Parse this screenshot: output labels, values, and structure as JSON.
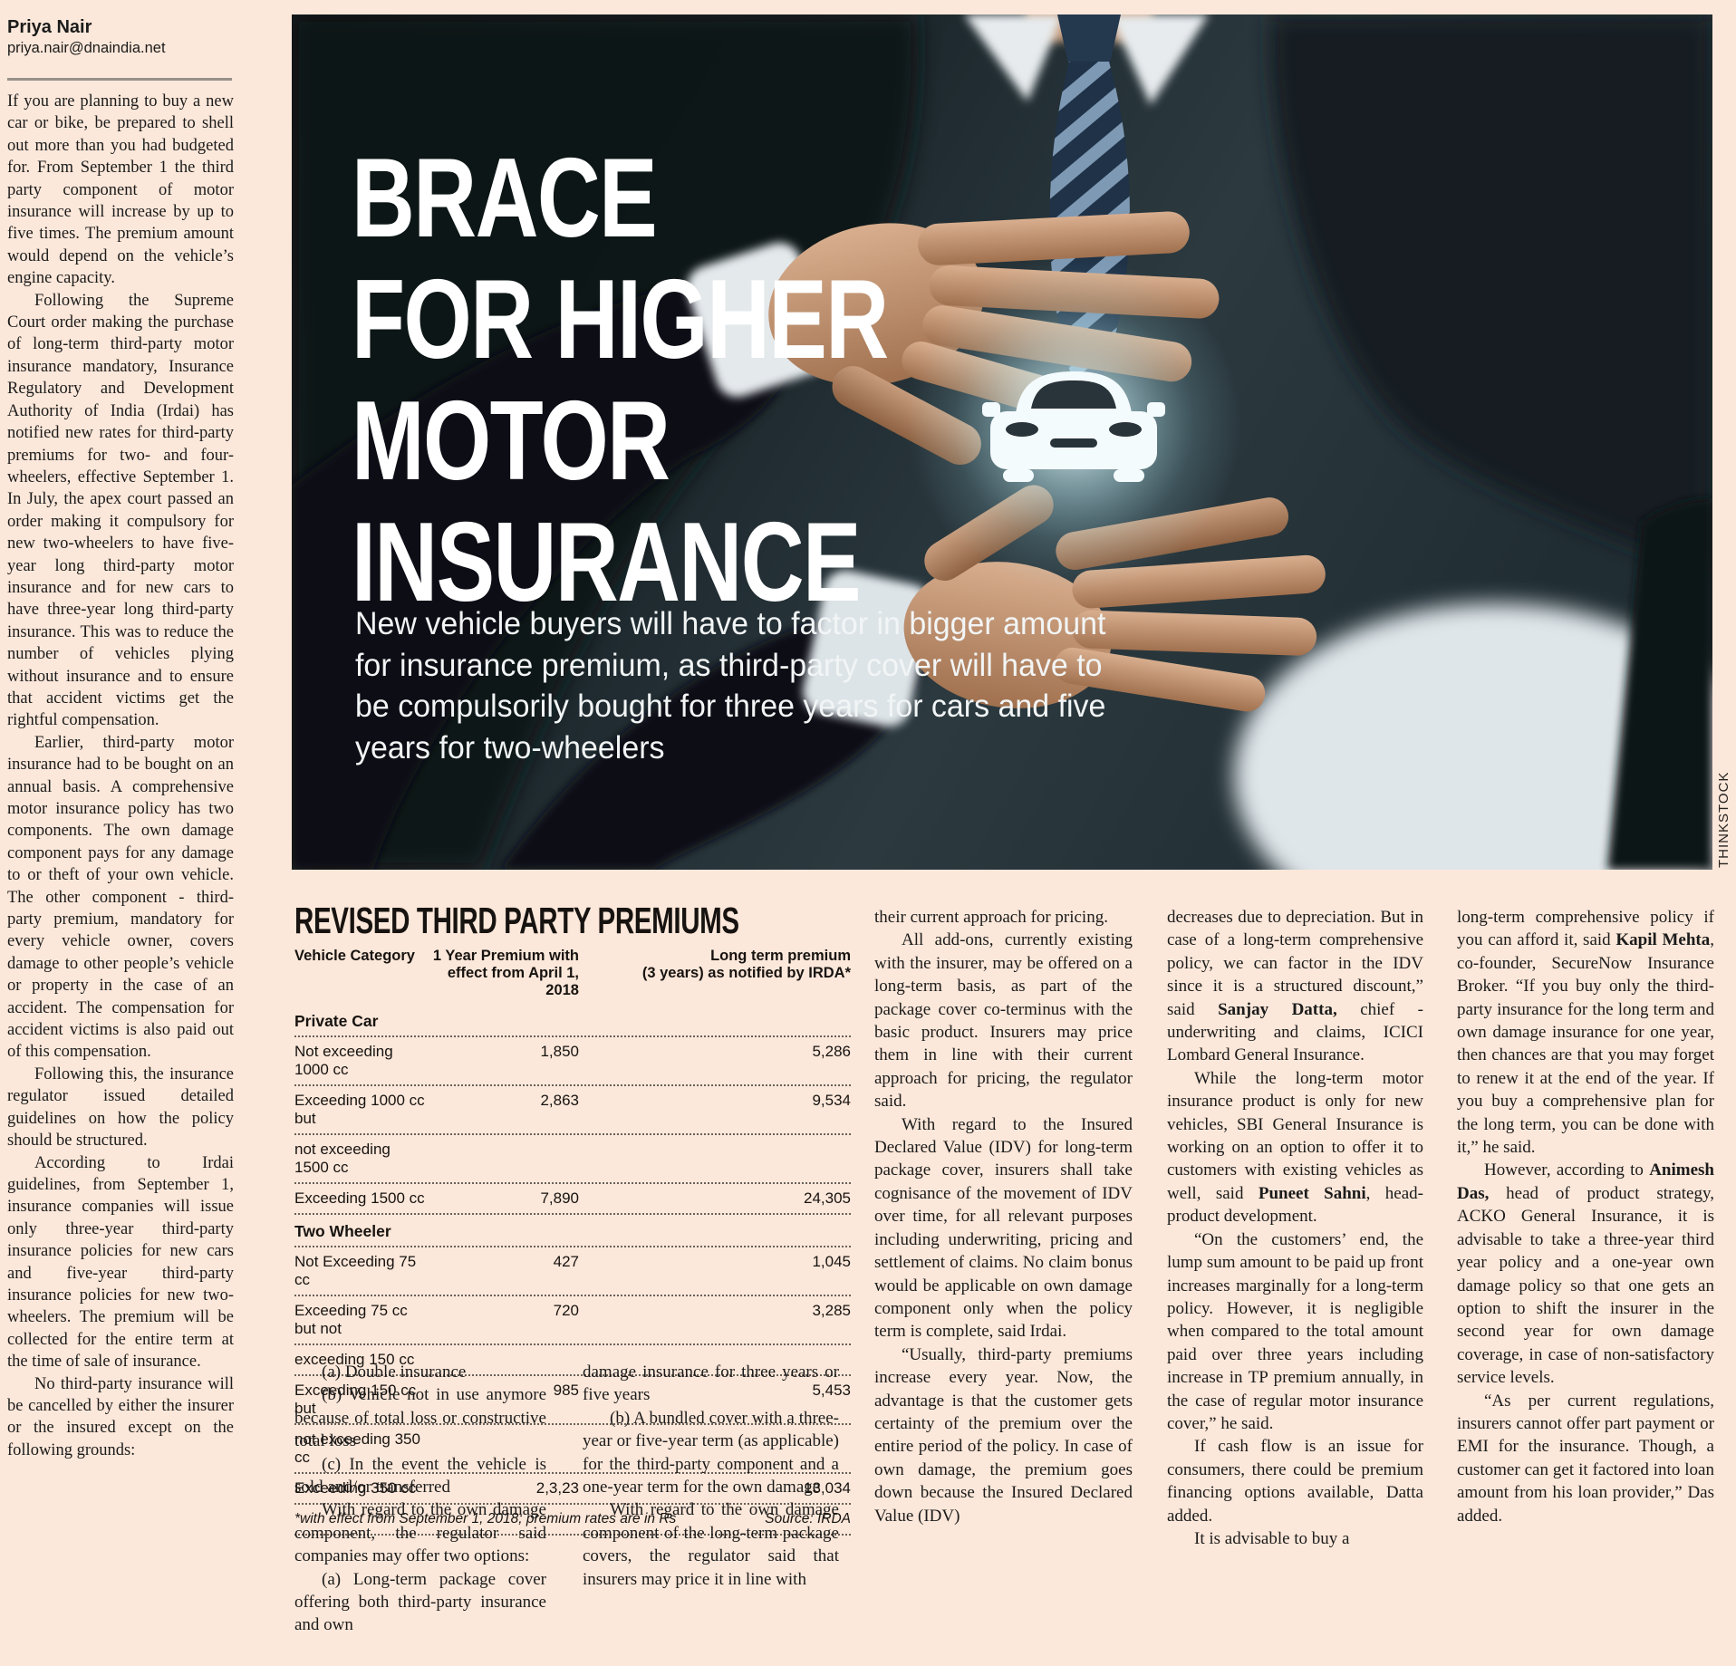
{
  "page": {
    "background_color": "#fce8da",
    "ink_color": "#1b1b1b",
    "glow_color": "#bfe9f2",
    "dotted_rule_color": "#6a6058"
  },
  "byline": {
    "name": "Priya Nair",
    "email": "priya.nair@dnaindia.net"
  },
  "hero": {
    "headline": "BRACE\nFOR HIGHER\nMOTOR\nINSURANCE",
    "subtitle": "New vehicle buyers will have to factor in bigger amount\nfor insurance premium, as third-party cover will have to\nbe compulsorily bought for three years for cars and five\nyears for two-wheelers",
    "credit": "THINKSTOCK",
    "illustration": "businessman-hands-sheltering-glowing-car-icon"
  },
  "table": {
    "title": "REVISED THIRD PARTY PREMIUMS",
    "headers": [
      "Vehicle Category",
      "1 Year Premium with\neffect from April 1, 2018",
      "Long term premium\n(3 years) as notified by IRDA*"
    ],
    "sections": [
      {
        "name": "Private Car",
        "rows": [
          [
            "Not exceeding 1000 cc",
            "1,850",
            "5,286"
          ],
          [
            "Exceeding 1000 cc but",
            "2,863",
            "9,534"
          ],
          [
            "not exceeding 1500 cc",
            "",
            ""
          ],
          [
            "Exceeding 1500 cc",
            "7,890",
            "24,305"
          ]
        ]
      },
      {
        "name": "Two Wheeler",
        "rows": [
          [
            "Not Exceeding 75 cc",
            "427",
            "1,045"
          ],
          [
            "Exceeding 75 cc but not",
            "720",
            "3,285"
          ],
          [
            "exceeding 150 cc",
            "",
            ""
          ],
          [
            "Exceeding 150 cc but",
            "985",
            "5,453"
          ],
          [
            "not exceeding 350 cc",
            "",
            ""
          ],
          [
            "Exceeding 350 cc",
            "2,3,23",
            "13,034"
          ]
        ]
      }
    ],
    "footnote": "*with effect from September 1, 2018; premium rates are in Rs",
    "source": "Source: IRDA"
  },
  "columns": {
    "col1": [
      {
        "ind": false,
        "parts": [
          "If you are planning to buy a new car or bike, be prepared to shell out more than you had budgeted for. From September 1 the third party component of motor insurance will increase by up to five times. The premium amount would depend on the vehicle’s engine capacity."
        ]
      },
      {
        "ind": true,
        "parts": [
          "Following the Supreme Court order making the purchase of long-term third-party motor insurance mandatory, Insurance Regulatory and Development Authority of India (Irdai) has notified new rates for third-party premiums for two- and four-wheelers, effective September 1. In July, the apex court passed an order making it compulsory for new two-wheelers to have five-year long third-party motor insurance and for new cars to have three-year long third-party insurance. This was to reduce the number of vehicles plying without insurance and to ensure that accident victims get the rightful compensation."
        ]
      },
      {
        "ind": true,
        "parts": [
          "Earlier, third-party motor insurance had to be bought on an annual basis. A comprehensive motor insurance policy has two components. The own damage component pays for any damage to or theft of your own vehicle. The other component - third-party premium, mandatory for every vehicle owner, covers damage to other people’s vehicle or property in the case of an accident. The compensation for accident victims is also paid out of this compensation."
        ]
      },
      {
        "ind": true,
        "parts": [
          "Following this, the insurance regulator issued detailed guidelines on how the policy should be structured."
        ]
      },
      {
        "ind": true,
        "parts": [
          "According to Irdai guidelines, from September 1, insurance companies will issue only three-year third-party insurance policies for new cars and five-year third-party insurance policies for new two-wheelers. The premium will be collected for the entire term at the time of sale of insurance."
        ]
      },
      {
        "ind": true,
        "parts": [
          "No third-party insurance will be cancelled by either the insurer or the insured except on the following grounds:"
        ]
      }
    ],
    "col2": [
      {
        "ind": true,
        "parts": [
          "(a) Double insurance"
        ]
      },
      {
        "ind": true,
        "parts": [
          "(b) Vehicle not in use anymore because of total loss or constructive total loss"
        ]
      },
      {
        "ind": true,
        "parts": [
          "(c) In the event the vehicle is sold and/or transferred"
        ]
      },
      {
        "ind": true,
        "parts": [
          "With regard to the own damage component, the regulator said companies may offer two options:"
        ]
      },
      {
        "ind": true,
        "parts": [
          "(a) Long-term package cover offering both third-party insurance and own"
        ]
      }
    ],
    "col3": [
      {
        "ind": false,
        "parts": [
          "damage insurance for three years or five years"
        ]
      },
      {
        "ind": true,
        "parts": [
          "(b) A bundled cover with a three-year or five-year term (as applicable) for the third-party component and a one-year term for the own damage"
        ]
      },
      {
        "ind": true,
        "parts": [
          "With regard to the own damage component of the long-term package covers, the regulator said that insurers may price it in line with"
        ]
      }
    ],
    "col4": [
      {
        "ind": false,
        "parts": [
          "their current approach for pricing."
        ]
      },
      {
        "ind": true,
        "parts": [
          "All add-ons, currently existing with the insurer, may be offered on a long-term basis, as part of the package cover co-terminus with the basic product. Insurers may price them in line with their current approach for pricing, the regulator said."
        ]
      },
      {
        "ind": true,
        "parts": [
          "With regard to the Insured Declared Value (IDV) for long-term package cover, insurers shall take cognisance of the movement of IDV over time, for all relevant purposes including underwriting, pricing and settlement of claims. No claim bonus would be applicable on own damage component only when the policy term is complete, said Irdai."
        ]
      },
      {
        "ind": true,
        "parts": [
          "“Usually, third-party premiums increase every year. Now, the advantage is that the customer gets certainty of the premium over the entire period of the policy. In case of own damage, the premium goes down because the Insured Declared Value (IDV)"
        ]
      }
    ],
    "col5": [
      {
        "ind": false,
        "parts": [
          "decreases due to depreciation. But in case of a long-term comprehensive policy, we can factor in the IDV since it is a structured discount,” said ",
          {
            "b": "Sanjay Datta,"
          },
          " chief - underwriting and claims, ICICI Lombard General Insurance."
        ]
      },
      {
        "ind": true,
        "parts": [
          "While the long-term motor insurance product is only for new vehicles, SBI General Insurance is working on an option to offer it to customers with existing vehicles as well, said ",
          {
            "b": "Puneet Sahni"
          },
          ", head- product development."
        ]
      },
      {
        "ind": true,
        "parts": [
          "“On the customers’ end, the lump sum amount to be paid up front increases marginally for a long-term policy. However, it is negligible when compared to the total amount paid over three years including increase in TP premium annually, in the case of regular motor insurance cover,” he said."
        ]
      },
      {
        "ind": true,
        "parts": [
          "If cash flow is an issue for consumers, there could be premium financing options available, Datta added."
        ]
      },
      {
        "ind": true,
        "parts": [
          "It is advisable to buy a"
        ]
      }
    ],
    "col6": [
      {
        "ind": false,
        "parts": [
          "long-term comprehensive policy if you can afford it, said ",
          {
            "b": "Kapil Mehta"
          },
          ", co-founder, SecureNow Insurance Broker. “If you buy only the third-party insurance for the long term and own damage insurance for one year, then chances are that you may forget to renew it at the end of the year. If you buy a comprehensive plan for the long term, you can be done with it,” he said."
        ]
      },
      {
        "ind": true,
        "parts": [
          "However, according to ",
          {
            "b": "Animesh Das,"
          },
          " head of product strategy, ACKO General Insurance, it is advisable to take a three-year third year policy and a one-year own damage policy so that one gets an option to shift the insurer in the second year for own damage coverage, in case of non-satisfactory service levels."
        ]
      },
      {
        "ind": true,
        "parts": [
          "“As per current regulations, insurers cannot offer part payment or EMI for the insurance. Though, a customer can get it factored into loan amount from his loan provider,” Das added."
        ]
      }
    ]
  }
}
